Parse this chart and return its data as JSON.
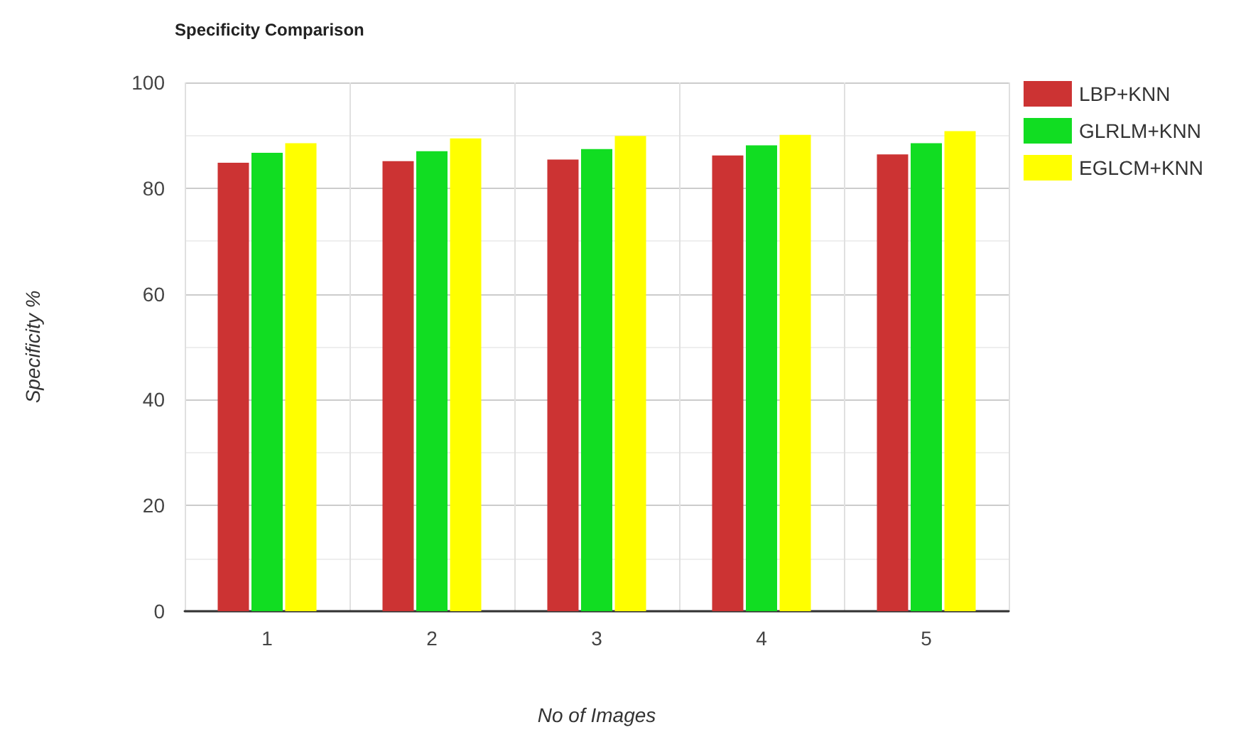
{
  "chart_data": {
    "type": "bar",
    "title": "Specificity Comparison",
    "xlabel": "No of Images",
    "ylabel": "Specificity %",
    "categories": [
      "1",
      "2",
      "3",
      "4",
      "5"
    ],
    "series": [
      {
        "name": "LBP+KNN",
        "color": "#cc3333",
        "values": [
          84.8,
          85.1,
          85.4,
          86.2,
          86.4
        ]
      },
      {
        "name": "GLRLM+KNN",
        "color": "#11dd22",
        "values": [
          86.7,
          87.0,
          87.4,
          88.1,
          88.5
        ]
      },
      {
        "name": "EGLCM+KNN",
        "color": "#ffff00",
        "values": [
          88.5,
          89.4,
          89.9,
          90.1,
          90.8
        ]
      }
    ],
    "ylim": [
      0,
      100
    ],
    "yticks": [
      0,
      20,
      40,
      60,
      80,
      100
    ],
    "grid": true,
    "legend": "right"
  }
}
